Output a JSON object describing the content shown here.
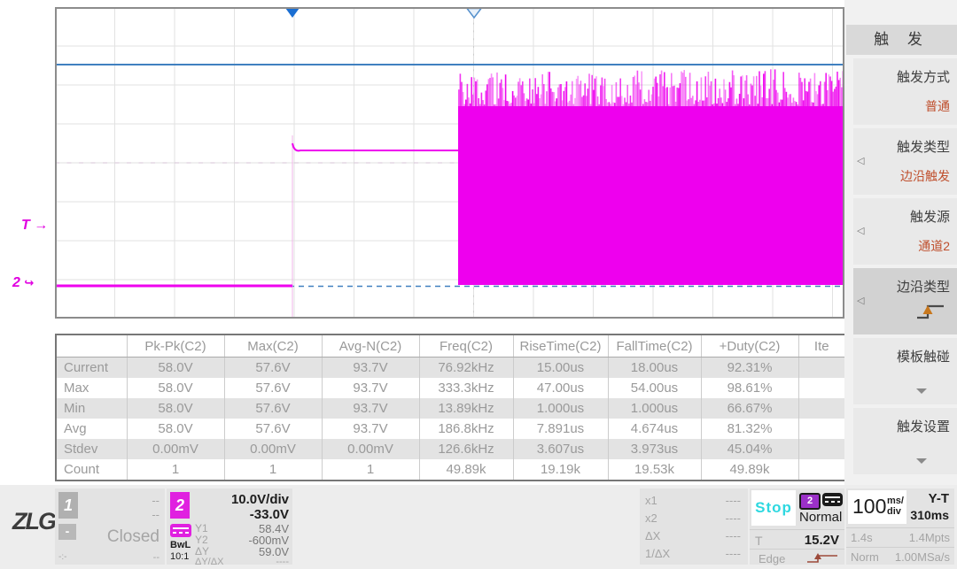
{
  "colors": {
    "magenta": "#ee00ee",
    "cursor_blue": "#4080c0",
    "accent_orange": "#bf4e2c",
    "stop_cyan": "#2ed8e0"
  },
  "plot": {
    "trigger_marker": "T",
    "channel_marker": "2"
  },
  "table": {
    "columns": [
      "",
      "Pk-Pk(C2)",
      "Max(C2)",
      "Avg-N(C2)",
      "Freq(C2)",
      "RiseTime(C2)",
      "FallTime(C2)",
      "+Duty(C2)",
      "Ite"
    ],
    "rows": [
      {
        "name": "Current",
        "values": [
          "58.0V",
          "57.6V",
          "93.7V",
          "76.92kHz",
          "15.00us",
          "18.00us",
          "92.31%",
          ""
        ]
      },
      {
        "name": "Max",
        "values": [
          "58.0V",
          "57.6V",
          "93.7V",
          "333.3kHz",
          "47.00us",
          "54.00us",
          "98.61%",
          ""
        ]
      },
      {
        "name": "Min",
        "values": [
          "58.0V",
          "57.6V",
          "93.7V",
          "13.89kHz",
          "1.000us",
          "1.000us",
          "66.67%",
          ""
        ]
      },
      {
        "name": "Avg",
        "values": [
          "58.0V",
          "57.6V",
          "93.7V",
          "186.8kHz",
          "7.891us",
          "4.674us",
          "81.32%",
          ""
        ]
      },
      {
        "name": "Stdev",
        "values": [
          "0.00mV",
          "0.00mV",
          "0.00mV",
          "126.6kHz",
          "3.607us",
          "3.973us",
          "45.04%",
          ""
        ]
      },
      {
        "name": "Count",
        "values": [
          "1",
          "1",
          "1",
          "49.89k",
          "19.19k",
          "19.53k",
          "49.89k",
          ""
        ]
      }
    ]
  },
  "sidebar": {
    "title": "触 发",
    "items": [
      {
        "label": "触发方式",
        "value": "普通"
      },
      {
        "label": "触发类型",
        "value": "边沿触发"
      },
      {
        "label": "触发源",
        "value": "通道2"
      },
      {
        "label": "边沿类型",
        "value": "",
        "icon": "rising-edge-icon"
      },
      {
        "label": "模板触碰",
        "value": "",
        "icon": "chevron-down-icon"
      },
      {
        "label": "触发设置",
        "value": "",
        "icon": "chevron-down-icon"
      }
    ]
  },
  "bottom": {
    "logo": "ZLG",
    "registered": "®",
    "ch1": {
      "badge": "1",
      "v1": "--",
      "v2": "--",
      "minus": "-",
      "status": "Closed",
      "misc_left": "-:-",
      "misc_right": "--"
    },
    "ch2": {
      "badge": "2",
      "scale": "10.0V/div",
      "offset": "-33.0V",
      "bwl": "BwL",
      "probe": "10:1",
      "cursors": [
        {
          "label": "Y1",
          "value": "58.4V"
        },
        {
          "label": "Y2",
          "value": "-600mV"
        },
        {
          "label": "ΔY",
          "value": "59.0V"
        },
        {
          "label": "ΔY/ΔX",
          "value": "----"
        }
      ]
    },
    "xcursors": [
      {
        "label": "x1",
        "value": "----"
      },
      {
        "label": "x2",
        "value": "----"
      },
      {
        "label": "ΔX",
        "value": "----"
      },
      {
        "label": "1/ΔX",
        "value": "----"
      }
    ],
    "trigger": {
      "run_state": "Stop",
      "badge": "2",
      "mode": "Normal",
      "t_label": "T",
      "level": "15.2V",
      "type": "Edge"
    },
    "timebase": {
      "scale": "100",
      "unit_top": "ms/",
      "unit_bottom": "div",
      "mode": "Y-T",
      "delay": "310ms",
      "window": "1.4s",
      "points": "1.4Mpts",
      "acq": "Norm",
      "rate": "1.00MSa/s"
    }
  }
}
